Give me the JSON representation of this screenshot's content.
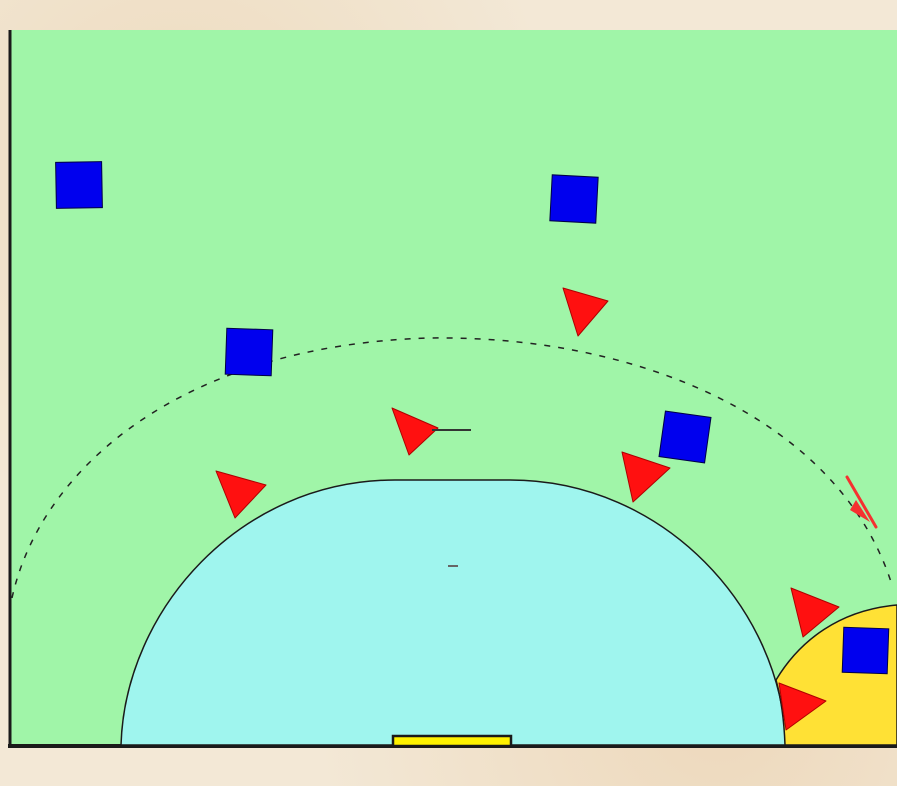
{
  "diagram": {
    "colors": {
      "background": "#f3e8d6",
      "court": "#a0f5a8",
      "goal_area": "#9ff5ee",
      "corner_zone": "#ffe135",
      "goal": "#fff200",
      "line": "#1a1a1a",
      "defender": "#ff1010",
      "attacker": "#0000ee"
    },
    "attackers": [
      {
        "name": "attacker-1"
      },
      {
        "name": "attacker-2"
      },
      {
        "name": "attacker-3"
      },
      {
        "name": "attacker-4"
      },
      {
        "name": "attacker-5"
      }
    ],
    "defenders": [
      {
        "name": "defender-1"
      },
      {
        "name": "defender-2"
      },
      {
        "name": "defender-3"
      },
      {
        "name": "defender-4"
      },
      {
        "name": "defender-5"
      },
      {
        "name": "defender-6"
      }
    ],
    "has_dashed_free_throw_line": true,
    "has_movement_arrow": true
  }
}
